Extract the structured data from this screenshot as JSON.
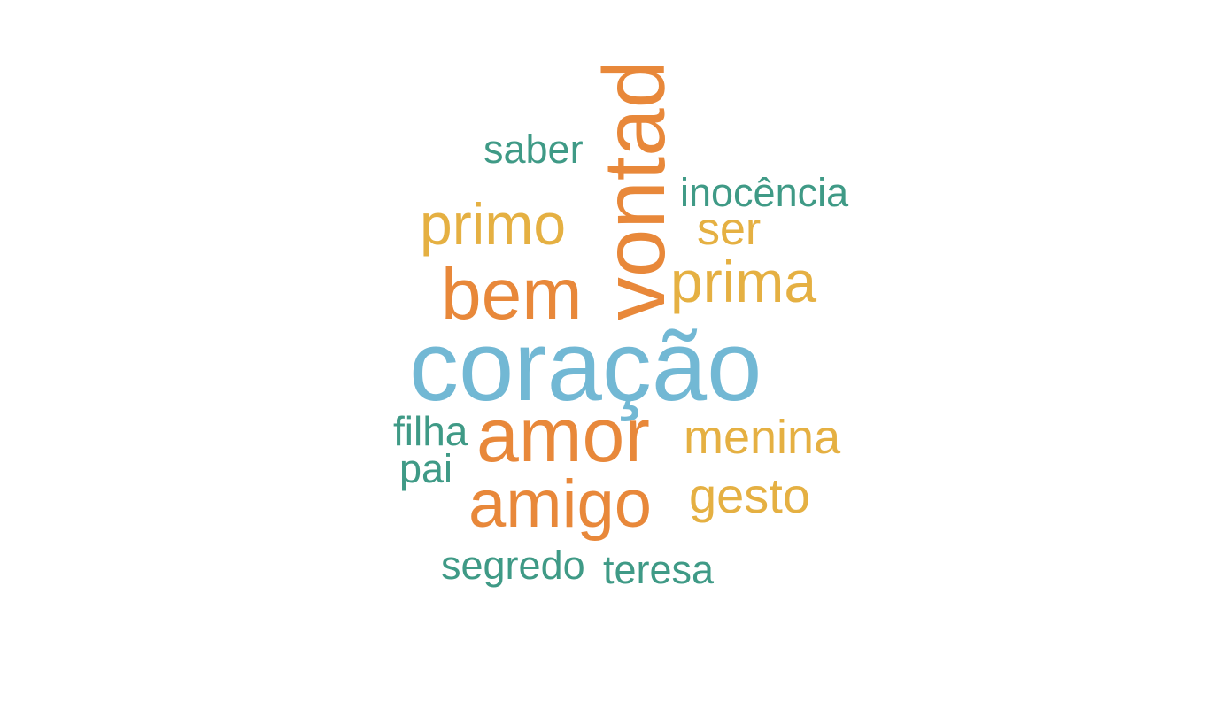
{
  "colors": {
    "teal": "#3f9a86",
    "orange": "#e8883a",
    "gold": "#e5b042",
    "blue": "#72b8d4",
    "background": "#ffffff"
  },
  "words": {
    "coracao": "coração",
    "vontad": "vontad",
    "amor": "amor",
    "amigo": "amigo",
    "bem": "bem",
    "primo": "primo",
    "prima": "prima",
    "menina": "menina",
    "gesto": "gesto",
    "ser": "ser",
    "inocencia": "inocência",
    "saber": "saber",
    "filha": "filha",
    "pai": "pai",
    "segredo": "segredo",
    "teresa": "teresa"
  }
}
